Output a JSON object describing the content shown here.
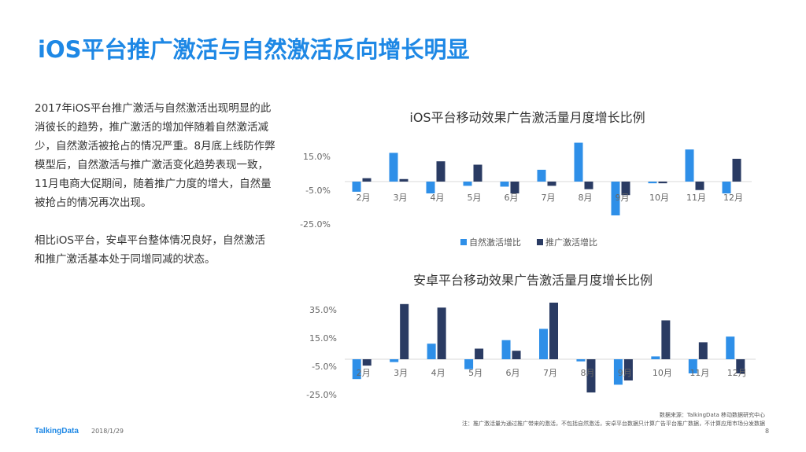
{
  "slide": {
    "title": "iOS平台推广激活与自然激活反向增长明显",
    "paragraphs": [
      "2017年iOS平台推广激活与自然激活出现明显的此消彼长的趋势，推广激活的增加伴随着自然激活减少，自然激活被抢占的情况严重。8月底上线防作弊模型后，自然激活与推广激活变化趋势表现一致，11月电商大促期间，随着推广力度的增大，自然量被抢占的情况再次出现。",
      "相比iOS平台，安卓平台整体情况良好，自然激活和推广激活基本处于同增同减的状态。"
    ],
    "source_line1": "数据来源：TalkingData 移动数据研究中心",
    "source_line2": "注：推广激活量为通过推广带来的激活，不包括自然激活，安卓平台数据只计算广告平台推广数据，不计算应用市场分发数据",
    "brand": "TalkingData",
    "date": "2018/1/29",
    "page_number": "8"
  },
  "colors": {
    "natural": "#2e8fe8",
    "promo": "#2a3b63",
    "title": "#1e88e5"
  },
  "chart_data": [
    {
      "type": "bar",
      "title": "iOS平台移动效果广告激活量月度增长比例",
      "categories": [
        "2月",
        "3月",
        "4月",
        "5月",
        "6月",
        "7月",
        "8月",
        "9月",
        "10月",
        "11月",
        "12月"
      ],
      "series": [
        {
          "name": "自然激活增比",
          "values": [
            -6.0,
            17.0,
            -7.0,
            -2.5,
            -3.0,
            7.0,
            23.0,
            -20.0,
            -1.0,
            19.0,
            -7.0
          ]
        },
        {
          "name": "推广激活增比",
          "values": [
            2.0,
            1.5,
            12.0,
            10.0,
            -7.0,
            -2.5,
            -4.5,
            -8.0,
            -1.0,
            -5.0,
            13.5
          ]
        }
      ],
      "y_ticks": [
        "15.0%",
        "-5.0%",
        "-25.0%"
      ],
      "ylim": [
        -25,
        25
      ],
      "legend_position": "bottom"
    },
    {
      "type": "bar",
      "title": "安卓平台移动效果广告激活量月度增长比例",
      "categories": [
        "2月",
        "3月",
        "4月",
        "5月",
        "6月",
        "7月",
        "8月",
        "9月",
        "10月",
        "11月",
        "12月"
      ],
      "series": [
        {
          "name": "自然激活增比",
          "values": [
            -14.0,
            -2.0,
            11.0,
            -7.0,
            13.5,
            21.5,
            -1.5,
            -18.0,
            2.0,
            -10.0,
            16.0
          ]
        },
        {
          "name": "推广激活增比",
          "values": [
            -4.5,
            39.0,
            36.5,
            7.5,
            6.0,
            40.0,
            -23.5,
            -15.0,
            27.5,
            12.0,
            -10.0
          ]
        }
      ],
      "y_ticks": [
        "35.0%",
        "15.0%",
        "-5.0%",
        "-25.0%"
      ],
      "ylim": [
        -25,
        40
      ]
    }
  ]
}
